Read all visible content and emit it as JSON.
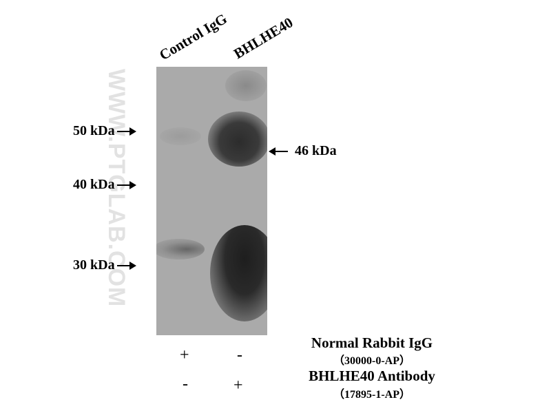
{
  "watermark": "WWW.PTGLAB.COM",
  "lanes": [
    "Control IgG",
    "BHLHE40"
  ],
  "markers": [
    "50 kDa",
    "40 kDa",
    "30 kDa"
  ],
  "target_marker": "46 kDa",
  "conditions": [
    {
      "name": "Normal Rabbit IgG",
      "catalog": "（30000-0-AP）",
      "signs": [
        "+",
        "-"
      ]
    },
    {
      "name": "BHLHE40 Antibody",
      "catalog": "（17895-1-AP）",
      "signs": [
        "-",
        "+"
      ]
    }
  ]
}
